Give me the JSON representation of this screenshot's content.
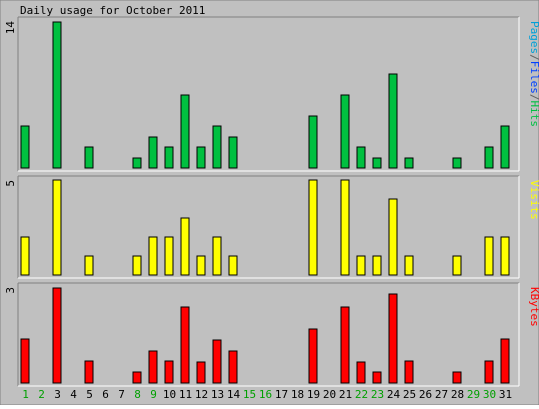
{
  "chart_data": {
    "type": "bar",
    "title": "Daily usage for October 2011",
    "categories": [
      "1",
      "2",
      "3",
      "4",
      "5",
      "6",
      "7",
      "8",
      "9",
      "10",
      "11",
      "12",
      "13",
      "14",
      "15",
      "16",
      "17",
      "18",
      "19",
      "20",
      "21",
      "22",
      "23",
      "24",
      "25",
      "26",
      "27",
      "28",
      "29",
      "30",
      "31"
    ],
    "weekend_days": [
      "1",
      "2",
      "8",
      "9",
      "15",
      "16",
      "22",
      "23",
      "29",
      "30"
    ],
    "panels": [
      {
        "id": "hits",
        "ymax": 14,
        "ymax_label": "14",
        "side_label_parts": [
          {
            "text": "Pages",
            "color": "#00a0d8"
          },
          {
            "text": "/",
            "color": "#606060"
          },
          {
            "text": "Files",
            "color": "#0040ff"
          },
          {
            "text": "/",
            "color": "#606060"
          },
          {
            "text": "Hits",
            "color": "#00c040"
          }
        ],
        "series": [
          {
            "key": "hits",
            "color": "#00c040",
            "values": [
              4,
              0,
              14,
              0,
              2,
              0,
              0,
              1,
              3,
              2,
              7,
              2,
              4,
              3,
              0,
              0,
              0,
              0,
              5,
              0,
              7,
              2,
              1,
              9,
              1,
              0,
              0,
              1,
              0,
              2,
              4
            ]
          }
        ]
      },
      {
        "id": "visits",
        "ymax": 5,
        "ymax_label": "5",
        "side_label_parts": [
          {
            "text": "Visits",
            "color": "#ffff00"
          }
        ],
        "series": [
          {
            "key": "visits",
            "color": "#ffff00",
            "values": [
              2,
              0,
              5,
              0,
              1,
              0,
              0,
              1,
              2,
              2,
              3,
              1,
              2,
              1,
              0,
              0,
              0,
              0,
              5,
              0,
              5,
              1,
              1,
              4,
              1,
              0,
              0,
              1,
              0,
              2,
              2
            ]
          }
        ]
      },
      {
        "id": "kbytes",
        "ymax": 3,
        "ymax_label": "3",
        "side_label_parts": [
          {
            "text": "KBytes",
            "color": "#ff0000"
          }
        ],
        "series": [
          {
            "key": "kbytes",
            "color": "#ff0000",
            "values": [
              1.4,
              0,
              3,
              0,
              0.7,
              0,
              0,
              0.35,
              1,
              0.7,
              2.4,
              0.65,
              1.35,
              1,
              0,
              0,
              0,
              0,
              1.7,
              0,
              2.4,
              0.65,
              0.35,
              2.8,
              0.7,
              0,
              0,
              0.35,
              0,
              0.7,
              1.4
            ]
          }
        ]
      }
    ],
    "colors": {
      "panel_bg": "#c0c0c0",
      "weekday_label": "#000000",
      "weekend_label": "#00a000"
    }
  }
}
